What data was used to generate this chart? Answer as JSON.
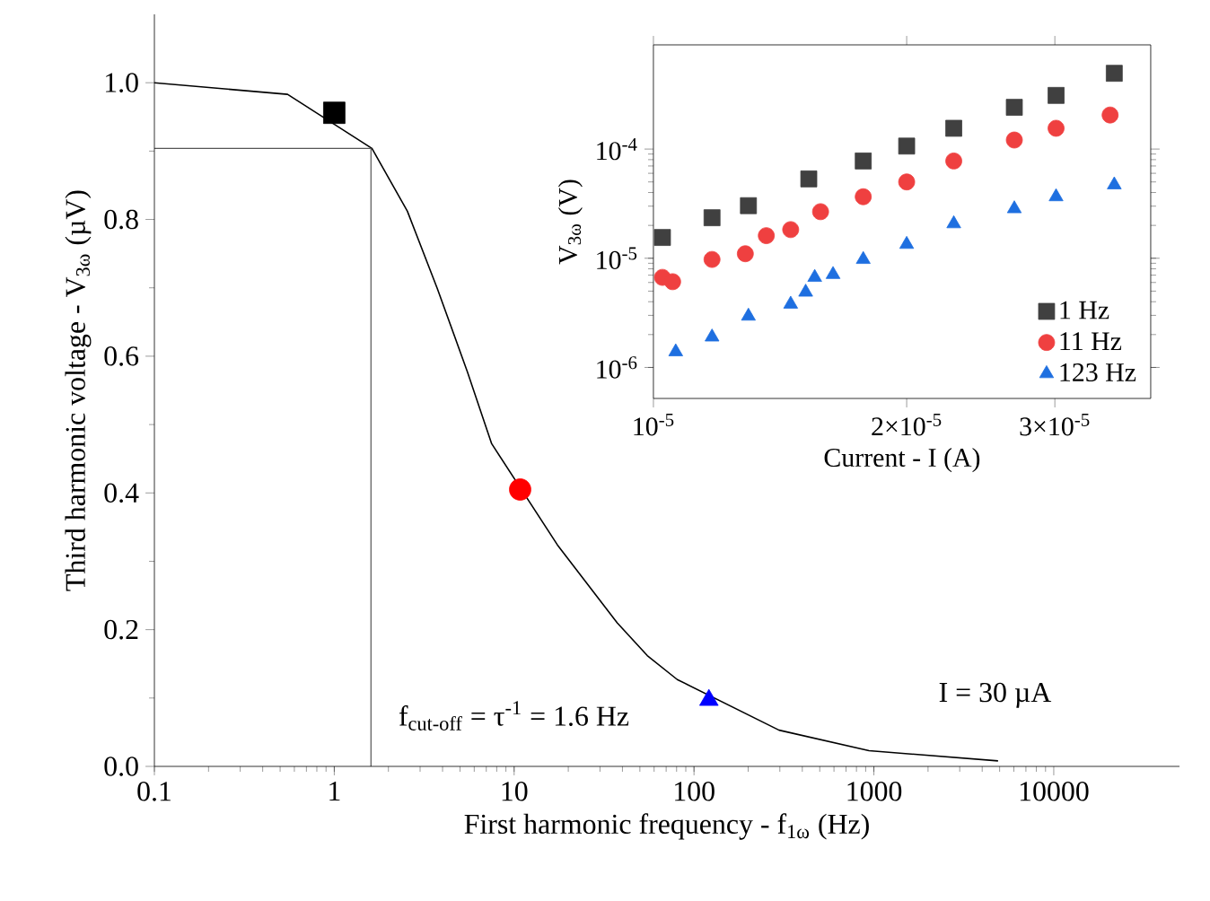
{
  "chart_data": [
    {
      "type": "line",
      "xlabel": "First harmonic frequency - f$_{1ω}$ (Hz)",
      "ylabel": "Third harmonic voltage - V$_{3ω}$ (µV)",
      "log": "x",
      "xlim": [
        0.1,
        50000
      ],
      "ylim": [
        0,
        1.1
      ],
      "xticks": [
        0.1,
        1,
        10,
        100,
        1000,
        10000
      ],
      "yticks": [
        {
          "value": 0,
          "label": "0.0"
        },
        {
          "value": 0.2,
          "label": "0.2"
        },
        {
          "value": 0.4,
          "label": "0.4"
        },
        {
          "value": 0.6,
          "label": "0.6"
        },
        {
          "value": 0.8,
          "label": "0.8"
        },
        {
          "value": 1,
          "label": "1.0"
        }
      ],
      "series": [
        {
          "color": "#000000",
          "x": [
            0.1,
            0.55,
            1.62,
            2.55,
            3.74,
            5.5,
            7.5,
            17.4,
            37.4,
            55,
            80.7,
            297,
            940,
            4900
          ],
          "values": [
            1.0,
            0.983,
            0.904,
            0.812,
            0.699,
            0.577,
            0.472,
            0.324,
            0.21,
            0.162,
            0.127,
            0.053,
            0.023,
            0.008
          ]
        },
        {
          "type": "scatter",
          "marker": "square",
          "color": "#000000",
          "x": [
            1.0
          ],
          "values": [
            0.956
          ]
        },
        {
          "type": "scatter",
          "marker": "circle",
          "color": "#ff0000",
          "x": [
            10.8
          ],
          "values": [
            0.405
          ]
        },
        {
          "type": "scatter",
          "marker": "triangle",
          "color": "#0000ff",
          "x": [
            121
          ],
          "values": [
            0.097
          ]
        }
      ],
      "ref_lines": [
        {
          "axis": "x",
          "value": 1.6,
          "color": "#555555"
        },
        {
          "axis": "y",
          "value": 0.904,
          "color": "#555555"
        }
      ],
      "annotations": [
        "f$_{cut-off}$ = τ$^{-1}$ = 1.6 Hz",
        "I = 30 µA"
      ]
    },
    {
      "type": "scatter",
      "xlabel": "Current - I (A)",
      "ylabel": "V$_{3ω}$ (V)",
      "log": "xy",
      "xlim": [
        1e-05,
        3.9e-05
      ],
      "ylim": [
        5.2e-07,
        0.0009
      ],
      "legend": "bottom right",
      "xticks": [
        {
          "value": 1e-05,
          "label": "10$^{-5}$"
        },
        {
          "value": 2e-05,
          "label": "2×10$^{-5}$"
        },
        {
          "value": 3e-05,
          "label": "3×10$^{-5}$"
        }
      ],
      "yticks": [
        {
          "value": 1e-06,
          "label": "10$^{-6}$"
        },
        {
          "value": 1e-05,
          "label": "10$^{-5}$"
        },
        {
          "value": 0.0001,
          "label": "10$^{-4}$"
        }
      ],
      "series": [
        {
          "name": "1 Hz",
          "marker": "square",
          "color": "#404040",
          "x": [
            1.025e-05,
            1.174e-05,
            1.297e-05,
            1.53e-05,
            1.776e-05,
            2e-05,
            2.275e-05,
            2.685e-05,
            3.01e-05,
            3.53e-05
          ],
          "values": [
            1.55e-05,
            2.35e-05,
            3.03e-05,
            5.33e-05,
            7.78e-05,
            0.0001065,
            0.000155,
            0.000241,
            0.00031,
            0.000494
          ]
        },
        {
          "name": "11 Hz",
          "marker": "circle",
          "color": "#ef4040",
          "x": [
            1.025e-05,
            1.054e-05,
            1.174e-05,
            1.286e-05,
            1.362e-05,
            1.456e-05,
            1.58e-05,
            1.776e-05,
            2e-05,
            2.275e-05,
            2.685e-05,
            3.01e-05,
            3.49e-05
          ],
          "values": [
            6.68e-06,
            6.1e-06,
            9.75e-06,
            1.1e-05,
            1.61e-05,
            1.83e-05,
            2.67e-05,
            3.66e-05,
            5e-05,
            7.78e-05,
            0.000121,
            0.000155,
            0.000205
          ]
        },
        {
          "name": "123 Hz",
          "marker": "triangle",
          "color": "#1e6fe0",
          "x": [
            1.063e-05,
            1.174e-05,
            1.297e-05,
            1.456e-05,
            1.517e-05,
            1.555e-05,
            1.635e-05,
            1.776e-05,
            2e-05,
            2.275e-05,
            2.685e-05,
            3.01e-05,
            3.53e-05
          ],
          "values": [
            1.39e-06,
            1.9e-06,
            2.95e-06,
            3.8e-06,
            4.89e-06,
            6.68e-06,
            7.1e-06,
            9.75e-06,
            1.34e-05,
            2.07e-05,
            2.84e-05,
            3.66e-05,
            4.7e-05
          ]
        }
      ]
    }
  ]
}
